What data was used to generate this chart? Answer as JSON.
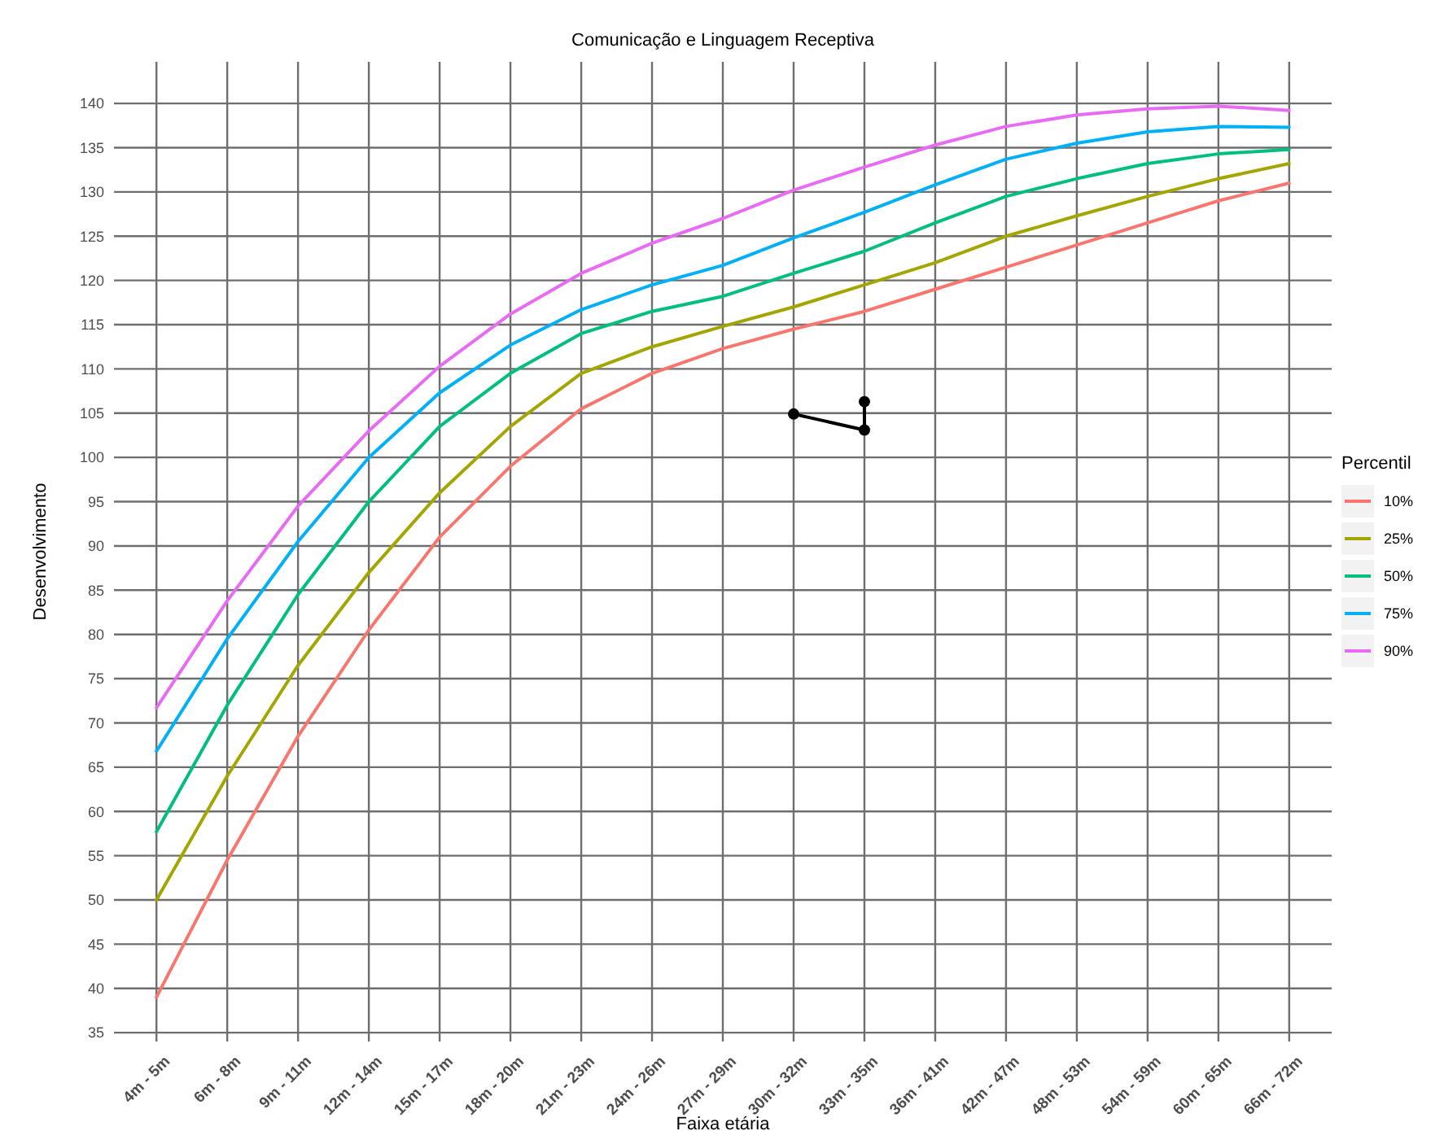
{
  "chart_data": {
    "type": "line",
    "title": "Comunicação e Linguagem Receptiva",
    "xlabel": "Faixa etária",
    "ylabel": "Desenvolvimento",
    "legend_title": "Percentil",
    "categories": [
      "4m - 5m",
      "6m - 8m",
      "9m - 11m",
      "12m - 14m",
      "15m - 17m",
      "18m - 20m",
      "21m - 23m",
      "24m - 26m",
      "27m - 29m",
      "30m - 32m",
      "33m - 35m",
      "36m - 41m",
      "42m - 47m",
      "48m - 53m",
      "54m - 59m",
      "60m - 65m",
      "66m - 72m"
    ],
    "series": [
      {
        "name": "10%",
        "color": "#f8766d",
        "values": [
          39,
          54.5,
          68.5,
          80.5,
          91,
          99,
          105.5,
          109.5,
          112.3,
          114.5,
          116.5,
          119,
          121.5,
          124,
          126.5,
          129,
          131
        ]
      },
      {
        "name": "25%",
        "color": "#a3a500",
        "values": [
          50,
          64,
          76.5,
          87,
          96,
          103.5,
          109.5,
          112.5,
          114.8,
          117,
          119.5,
          122,
          125,
          127.3,
          129.5,
          131.5,
          133.2
        ]
      },
      {
        "name": "50%",
        "color": "#00bf7d",
        "values": [
          57.7,
          72,
          84.5,
          95,
          103.5,
          109.5,
          114,
          116.5,
          118.2,
          120.8,
          123.3,
          126.5,
          129.5,
          131.5,
          133.2,
          134.3,
          134.8
        ]
      },
      {
        "name": "75%",
        "color": "#00b0f6",
        "values": [
          66.8,
          79.5,
          90.5,
          100,
          107.3,
          112.7,
          116.7,
          119.5,
          121.7,
          124.8,
          127.7,
          130.8,
          133.7,
          135.5,
          136.8,
          137.4,
          137.3
        ]
      },
      {
        "name": "90%",
        "color": "#e76bf3",
        "values": [
          71.7,
          83.8,
          94.5,
          103,
          110.3,
          116.2,
          120.8,
          124.2,
          127,
          130.2,
          132.8,
          135.3,
          137.4,
          138.7,
          139.4,
          139.7,
          139.2
        ]
      },
      {
        "color": "#000000",
        "marker": "circle",
        "x": [
          "30m - 32m",
          "33m - 35m",
          "33m - 35m"
        ],
        "values": [
          104.9,
          103.1,
          106.3
        ]
      }
    ],
    "ylim": [
      34,
      144.7
    ],
    "yticks": [
      35,
      40,
      45,
      50,
      55,
      60,
      65,
      70,
      75,
      80,
      85,
      90,
      95,
      100,
      105,
      110,
      115,
      120,
      125,
      130,
      135,
      140
    ],
    "grid": true,
    "legend": "right"
  }
}
